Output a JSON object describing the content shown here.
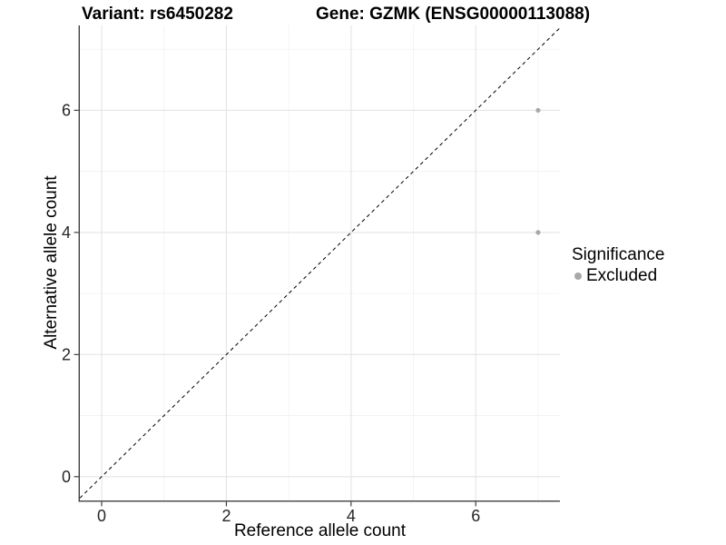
{
  "chart_data": {
    "type": "scatter",
    "title_left": "Variant: rs6450282",
    "title_right": "Gene: GZMK (ENSG00000113088)",
    "xlabel": "Reference allele count",
    "ylabel": "Alternative allele count",
    "xlim": [
      -0.35,
      7.35
    ],
    "ylim": [
      -0.39,
      7.39
    ],
    "x_ticks": [
      0,
      2,
      4,
      6
    ],
    "y_ticks": [
      0,
      2,
      4,
      6
    ],
    "x_minor_gridlines": [
      1,
      3,
      5,
      7
    ],
    "y_minor_gridlines": [
      1,
      3,
      5,
      7
    ],
    "grid": "on",
    "identity_line": {
      "style": "dashed",
      "color": "#000000",
      "from": [
        -0.35,
        -0.35
      ],
      "to": [
        7.35,
        7.35
      ]
    },
    "series": [
      {
        "name": "Excluded",
        "marker": "circle",
        "color": "#a8a8a8",
        "points": [
          [
            7,
            6
          ],
          [
            7,
            4
          ]
        ]
      }
    ],
    "legend": {
      "title": "Significance",
      "position": "right",
      "items": [
        {
          "label": "Excluded",
          "color": "#a8a8a8"
        }
      ]
    },
    "colors": {
      "background": "#ffffff",
      "major_grid": "#e4e4e4",
      "minor_grid": "#f1f1f1",
      "axis_line": "#404040",
      "tick_text": "#262626",
      "point": "#a8a8a8"
    }
  }
}
